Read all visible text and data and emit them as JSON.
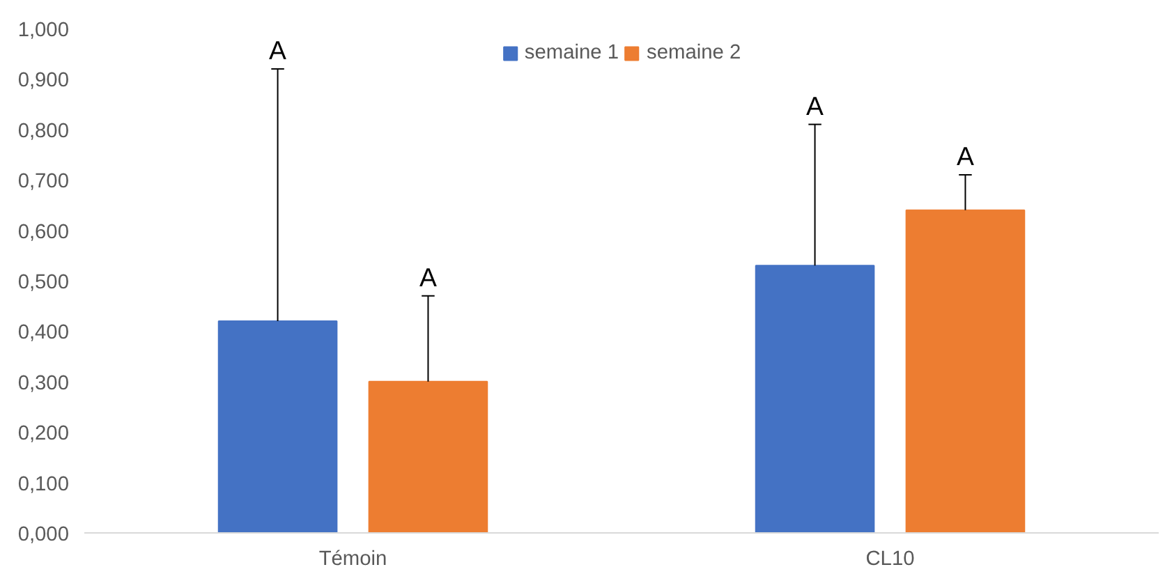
{
  "chart_data": {
    "type": "bar",
    "categories": [
      "Témoin",
      "CL10"
    ],
    "series": [
      {
        "name": "semaine 1",
        "color": "#4472c4",
        "values": [
          0.42,
          0.53
        ],
        "errors": [
          [
            0.42,
            0.92
          ],
          [
            0.53,
            0.81
          ]
        ]
      },
      {
        "name": "semaine 2",
        "color": "#ed7d31",
        "values": [
          0.3,
          0.64
        ],
        "errors": [
          [
            0.3,
            0.47
          ],
          [
            0.64,
            0.71
          ]
        ]
      }
    ],
    "ylim": [
      0,
      1
    ],
    "yticks": [
      {
        "value": 0,
        "label": "0,000"
      },
      {
        "value": 0.1,
        "label": "0,100"
      },
      {
        "value": 0.2,
        "label": "0,200"
      },
      {
        "value": 0.3,
        "label": "0,300"
      },
      {
        "value": 0.4,
        "label": "0,400"
      },
      {
        "value": 0.5,
        "label": "0,500"
      },
      {
        "value": 0.6,
        "label": "0,600"
      },
      {
        "value": 0.7,
        "label": "0,700"
      },
      {
        "value": 0.8,
        "label": "0,800"
      },
      {
        "value": 0.9,
        "label": "0,900"
      },
      {
        "value": 1.0,
        "label": "1,000"
      }
    ],
    "annotations": [
      "A",
      "A",
      "A",
      "A"
    ],
    "grid": false,
    "legend": "top"
  }
}
